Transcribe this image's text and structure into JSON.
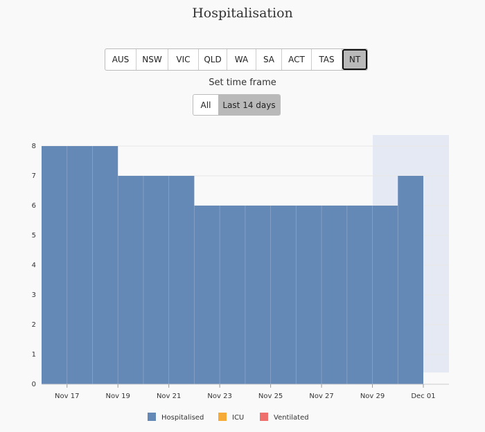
{
  "header": {
    "title": "Hospitalisation"
  },
  "regions": {
    "buttons": [
      "AUS",
      "NSW",
      "VIC",
      "QLD",
      "WA",
      "SA",
      "ACT",
      "TAS",
      "NT"
    ],
    "selected": 8
  },
  "time_frame": {
    "label": "Set time frame",
    "buttons": [
      "All",
      "Last 14 days"
    ],
    "selected": 1
  },
  "chart_data": {
    "type": "bar",
    "xticks": [
      "Nov 17",
      "Nov 19",
      "Nov 21",
      "Nov 23",
      "Nov 25",
      "Nov 27",
      "Nov 29",
      "Dec 01"
    ],
    "series": [
      {
        "name": "Hospitalised",
        "color": "#6589b6",
        "values": [
          8,
          8,
          8,
          7,
          7,
          7,
          6,
          6,
          6,
          6,
          6,
          6,
          6,
          6,
          7
        ]
      },
      {
        "name": "ICU",
        "color": "#f5ab35"
      },
      {
        "name": "Ventilated",
        "color": "#ef6f6c"
      }
    ],
    "ylim": [
      0,
      8
    ],
    "yticks": [
      0,
      1,
      2,
      3,
      4,
      5,
      6,
      7,
      8
    ],
    "grid": true
  }
}
